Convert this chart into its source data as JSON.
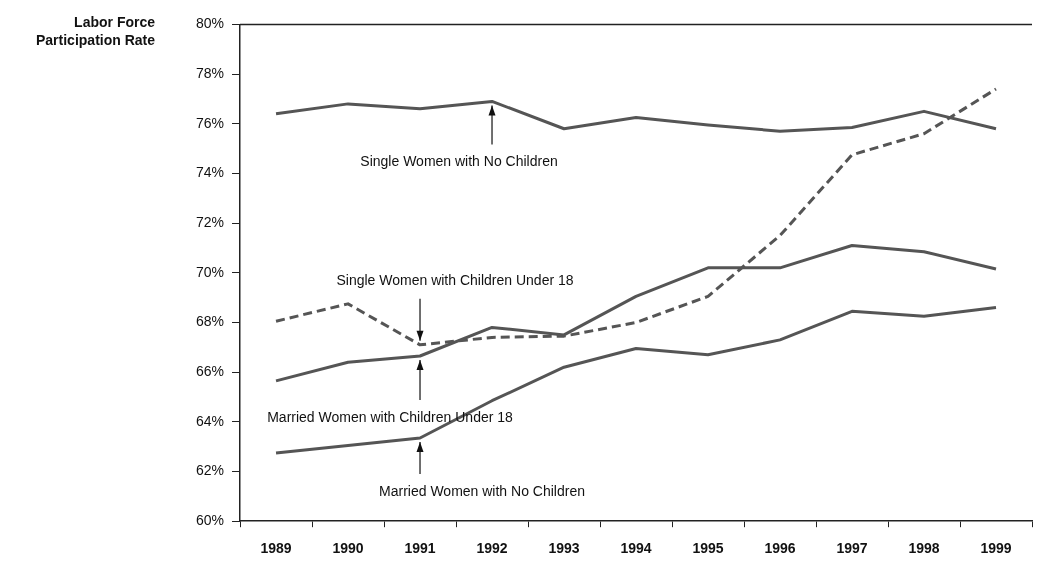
{
  "chart_data": {
    "type": "line",
    "ylabel": "Labor Force Participation Rate",
    "categories": [
      "1989",
      "1990",
      "1991",
      "1992",
      "1993",
      "1994",
      "1995",
      "1996",
      "1997",
      "1998",
      "1999"
    ],
    "series": [
      {
        "color": "#555555",
        "line_style": "solid",
        "values": [
          76.4,
          76.8,
          76.6,
          76.9,
          75.8,
          76.25,
          75.95,
          75.7,
          75.85,
          76.5,
          75.8
        ]
      },
      {
        "color": "#555555",
        "line_style": "dashed",
        "values": [
          68.05,
          68.75,
          67.1,
          67.4,
          67.45,
          68.0,
          69.05,
          71.5,
          74.75,
          75.6,
          77.4
        ]
      },
      {
        "color": "#555555",
        "line_style": "solid",
        "values": [
          65.65,
          66.4,
          66.65,
          67.8,
          67.5,
          69.05,
          70.2,
          70.2,
          71.1,
          70.85,
          70.15
        ]
      },
      {
        "color": "#555555",
        "line_style": "solid",
        "values": [
          62.75,
          63.05,
          63.35,
          64.85,
          66.2,
          66.95,
          66.7,
          67.3,
          68.45,
          68.25,
          68.6
        ]
      }
    ],
    "annotations": [
      {
        "text": "Single Women with No Children",
        "x": "1992",
        "y": 76.9
      },
      {
        "text": "Single Women with Children Under 18",
        "x": "1991",
        "y": 67.1
      },
      {
        "text": "Married Women with Children Under 18",
        "x": "1991",
        "y": 66.65
      },
      {
        "text": "Married Women with No Children",
        "x": "1991",
        "y": 63.35
      }
    ],
    "ylim": [
      60,
      80
    ],
    "yticks": [
      {
        "value": 60,
        "label": "60%"
      },
      {
        "value": 62,
        "label": "62%"
      },
      {
        "value": 64,
        "label": "64%"
      },
      {
        "value": 66,
        "label": "66%"
      },
      {
        "value": 68,
        "label": "68%"
      },
      {
        "value": 70,
        "label": "70%"
      },
      {
        "value": 72,
        "label": "72%"
      },
      {
        "value": 74,
        "label": "74%"
      },
      {
        "value": 76,
        "label": "76%"
      },
      {
        "value": 78,
        "label": "78%"
      },
      {
        "value": 80,
        "label": "80%"
      }
    ],
    "grid": false,
    "legend": false,
    "marker": "none"
  }
}
